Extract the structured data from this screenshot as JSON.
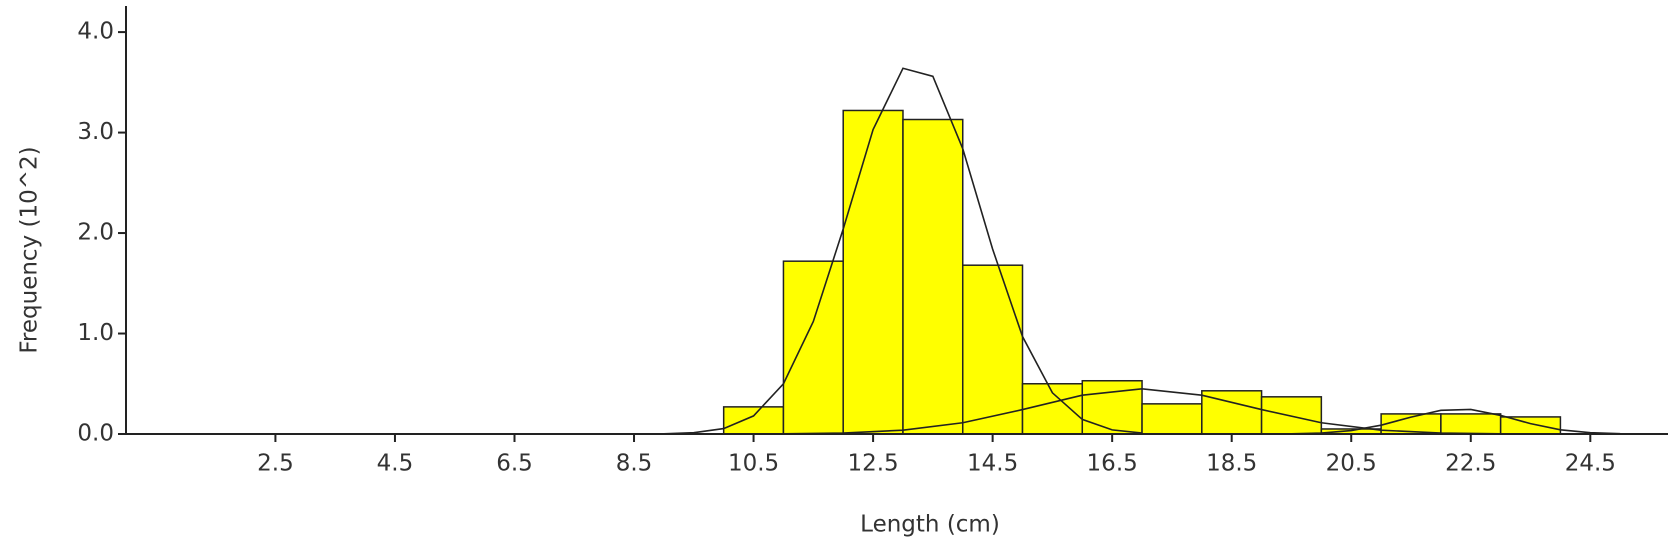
{
  "chart_data": {
    "type": "histogram",
    "xlabel": "Length (cm)",
    "ylabel": "Frequency (10^2)",
    "bins": [
      10,
      11,
      12,
      13,
      14,
      15,
      16,
      17,
      18,
      19,
      20,
      21,
      22,
      23,
      24
    ],
    "values": [
      0.27,
      1.72,
      3.22,
      3.13,
      1.68,
      0.5,
      0.53,
      0.3,
      0.43,
      0.37,
      0.05,
      0.2,
      0.2,
      0.17
    ],
    "color": "#ffff00",
    "xlim": [
      0,
      25.8
    ],
    "ylim": [
      0,
      4.2
    ],
    "xticks": [
      2.5,
      4.5,
      6.5,
      8.5,
      10.5,
      12.5,
      14.5,
      16.5,
      18.5,
      20.5,
      22.5,
      24.5
    ],
    "yticks": [
      {
        "value": 0,
        "label": "0.0"
      },
      {
        "value": 1,
        "label": "1.0"
      },
      {
        "value": 2,
        "label": "2.0"
      },
      {
        "value": 3,
        "label": "3.0"
      },
      {
        "value": 4,
        "label": "4.0"
      }
    ],
    "curves": [
      {
        "color": "#222222",
        "x": [
          9,
          9.5,
          10,
          10.5,
          11,
          11.5,
          12,
          12.5,
          13,
          13.5,
          14,
          14.5,
          15,
          15.5,
          16,
          16.5,
          17
        ],
        "values": [
          0.0025,
          0.013,
          0.054,
          0.18,
          0.5,
          1.12,
          2.04,
          3.03,
          3.64,
          3.56,
          2.84,
          1.84,
          0.97,
          0.41,
          0.145,
          0.041,
          0.009
        ]
      },
      {
        "color": "#222222",
        "x": [
          11,
          12,
          13,
          14,
          15,
          16,
          17,
          18,
          19,
          20,
          21,
          22,
          23
        ],
        "values": [
          0.002,
          0.009,
          0.038,
          0.112,
          0.243,
          0.386,
          0.45,
          0.386,
          0.243,
          0.112,
          0.038,
          0.009,
          0.002
        ]
      },
      {
        "color": "#222222",
        "x": [
          19.5,
          20,
          20.5,
          21,
          21.5,
          22,
          22.5,
          23,
          23.5,
          24,
          24.5,
          25
        ],
        "values": [
          0.002,
          0.0095,
          0.034,
          0.088,
          0.168,
          0.236,
          0.244,
          0.185,
          0.103,
          0.042,
          0.013,
          0.003
        ]
      }
    ]
  }
}
